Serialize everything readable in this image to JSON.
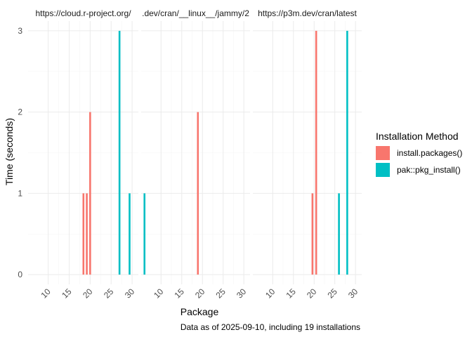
{
  "chart_data": {
    "type": "bar",
    "xlabel": "Package",
    "ylabel": "Time (seconds)",
    "caption": "Data as of 2025-09-10, including 19 installations",
    "legend": {
      "title": "Installation Method",
      "position": "right",
      "entries": [
        {
          "label": "install.packages()",
          "color": "#F8766D"
        },
        {
          "label": "pak::pkg_install()",
          "color": "#00BFC4"
        }
      ]
    },
    "ylim": [
      0,
      3
    ],
    "y_ticks": [
      0,
      1,
      2,
      3
    ],
    "x_ticks": [
      10,
      15,
      20,
      25,
      30
    ],
    "grid": true,
    "panels": [
      {
        "title": "https://cloud.r-project.org/",
        "xlim": [
          5.2,
          31.5
        ],
        "bars": [
          {
            "x": 18.4,
            "y": 1,
            "series": "install.packages()"
          },
          {
            "x": 19.2,
            "y": 1,
            "series": "install.packages()"
          },
          {
            "x": 20.0,
            "y": 2,
            "series": "install.packages()"
          },
          {
            "x": 27.0,
            "y": 3,
            "series": "pak::pkg_install()"
          },
          {
            "x": 29.4,
            "y": 1,
            "series": "pak::pkg_install()"
          }
        ]
      },
      {
        "title": ".dev/cran/__linux__/jammy/2",
        "xlim": [
          5.2,
          31.5
        ],
        "bars": [
          {
            "x": 6.0,
            "y": 1,
            "series": "pak::pkg_install()"
          },
          {
            "x": 18.9,
            "y": 2,
            "series": "install.packages()"
          }
        ]
      },
      {
        "title": "https://p3m.dev/cran/latest",
        "xlim": [
          5.2,
          31.5
        ],
        "bars": [
          {
            "x": 19.6,
            "y": 1,
            "series": "install.packages()"
          },
          {
            "x": 20.5,
            "y": 3,
            "series": "install.packages()"
          },
          {
            "x": 26.0,
            "y": 1,
            "series": "pak::pkg_install()"
          },
          {
            "x": 28.0,
            "y": 3,
            "series": "pak::pkg_install()"
          }
        ]
      }
    ]
  }
}
